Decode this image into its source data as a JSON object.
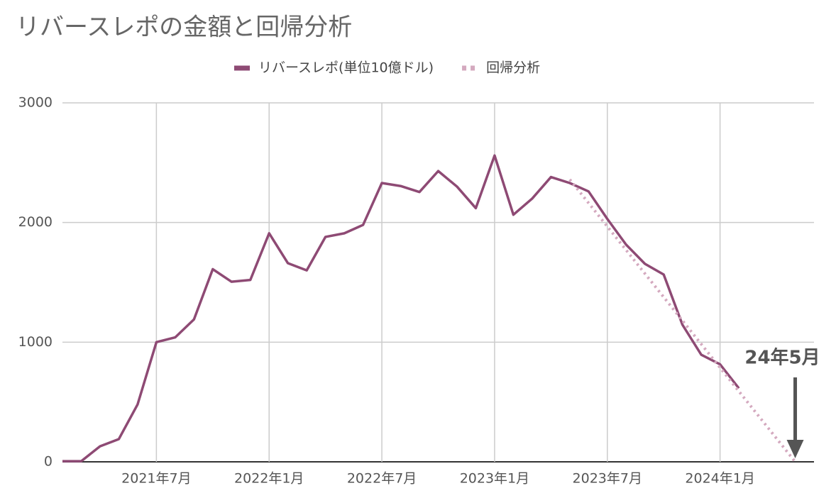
{
  "chart_data": {
    "type": "line",
    "title": "リバースレポの金額と回帰分析",
    "series": [
      {
        "name": "リバースレポ(単位10億ドル)",
        "color": "#8e4a74",
        "style": "solid",
        "x": [
          "2021-02",
          "2021-03",
          "2021-04",
          "2021-05",
          "2021-06",
          "2021-07",
          "2021-08",
          "2021-09",
          "2021-10",
          "2021-11",
          "2021-12",
          "2022-01",
          "2022-02",
          "2022-03",
          "2022-04",
          "2022-05",
          "2022-06",
          "2022-07",
          "2022-08",
          "2022-09",
          "2022-10",
          "2022-11",
          "2022-12",
          "2023-01",
          "2023-02",
          "2023-03",
          "2023-04",
          "2023-05",
          "2023-06",
          "2023-07",
          "2023-08",
          "2023-09",
          "2023-10",
          "2023-11",
          "2023-12",
          "2024-01",
          "2024-02"
        ],
        "values": [
          5,
          5,
          130,
          190,
          480,
          1000,
          1040,
          1190,
          1610,
          1505,
          1520,
          1910,
          1660,
          1600,
          1880,
          1910,
          1980,
          2330,
          2305,
          2255,
          2430,
          2300,
          2120,
          2560,
          2065,
          2200,
          2380,
          2330,
          2260,
          2030,
          1815,
          1655,
          1565,
          1145,
          895,
          815,
          615
        ]
      },
      {
        "name": "回帰分析",
        "color": "#d4a9bf",
        "style": "dotted",
        "x": [
          "2023-05",
          "2024-05"
        ],
        "values": [
          2360,
          0
        ]
      }
    ],
    "xlim": [
      "2021-02",
      "2024-06"
    ],
    "xticks": [
      {
        "value": "2021-07",
        "label": "2021年7月"
      },
      {
        "value": "2022-01",
        "label": "2022年1月"
      },
      {
        "value": "2022-07",
        "label": "2022年7月"
      },
      {
        "value": "2023-01",
        "label": "2023年1月"
      },
      {
        "value": "2023-07",
        "label": "2023年7月"
      },
      {
        "value": "2024-01",
        "label": "2024年1月"
      }
    ],
    "ylim": [
      0,
      3000
    ],
    "yticks": [
      0,
      1000,
      2000,
      3000
    ],
    "grid": true,
    "legend": "top",
    "annotation": {
      "text": "24年5月",
      "x": "2024-05"
    }
  }
}
